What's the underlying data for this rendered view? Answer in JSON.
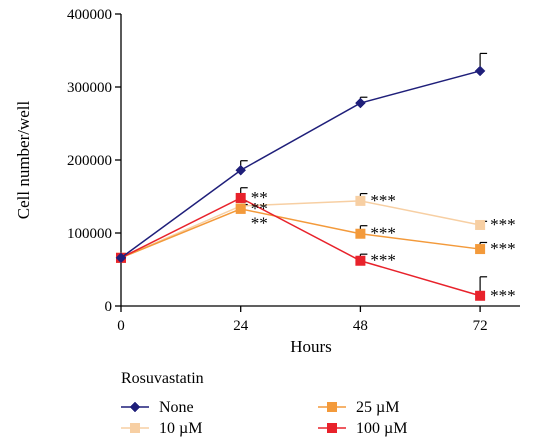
{
  "chart_data": {
    "type": "line",
    "title": "",
    "xlabel": "Hours",
    "ylabel": "Cell number/well",
    "x": [
      0,
      24,
      48,
      72
    ],
    "xticks": [
      "0",
      "24",
      "48",
      "72"
    ],
    "xlim": [
      0,
      80
    ],
    "ylim": [
      0,
      400000
    ],
    "yticks": [
      "0",
      "100000",
      "200000",
      "300000",
      "400000"
    ],
    "grid": false,
    "legend": {
      "title": "Rosuvastatin",
      "placement": "bottom",
      "order": [
        "None",
        "25 µM",
        "10 µM",
        "100 µM"
      ]
    },
    "series": [
      {
        "name": "None",
        "color": "#1f1f7a",
        "marker": "diamond",
        "values": [
          66000,
          186000,
          278000,
          322000
        ],
        "errors": [
          0,
          13000,
          8000,
          24000
        ],
        "labels": [
          "",
          "",
          "",
          ""
        ]
      },
      {
        "name": "10 µM",
        "color": "#f7cfa3",
        "marker": "square",
        "values": [
          66000,
          137000,
          144000,
          111000
        ],
        "errors": [
          0,
          6000,
          10000,
          5000
        ],
        "labels": [
          "",
          "",
          "***",
          "***"
        ]
      },
      {
        "name": "25 µM",
        "color": "#f39a3b",
        "marker": "square",
        "values": [
          66000,
          133000,
          99000,
          78000
        ],
        "errors": [
          0,
          6000,
          11000,
          9000
        ],
        "labels": [
          "",
          "**",
          "***",
          "***"
        ]
      },
      {
        "name": "100 µM",
        "color": "#e8222b",
        "marker": "square",
        "values": [
          66000,
          148000,
          62000,
          14000
        ],
        "errors": [
          0,
          14000,
          9000,
          26000
        ],
        "labels": [
          "",
          "**",
          "***",
          "***"
        ]
      }
    ],
    "extra_annotations": [
      {
        "x": 24,
        "y": 110000,
        "text": "**"
      }
    ]
  }
}
